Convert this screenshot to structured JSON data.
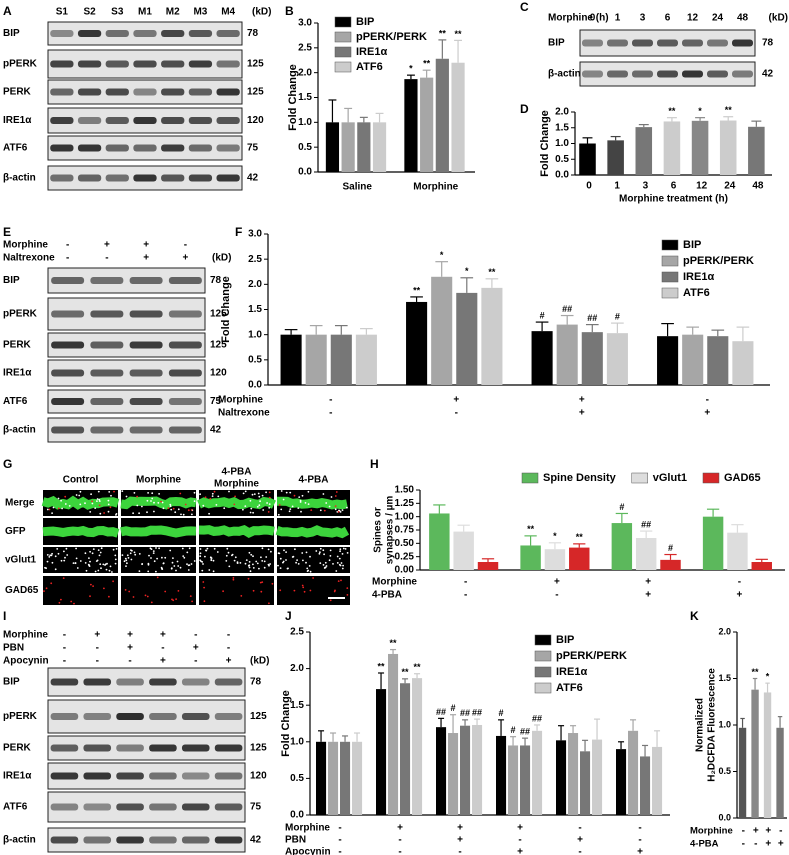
{
  "blots": [
    {
      "panel": "A",
      "lanes": [
        "S1",
        "S2",
        "S3",
        "M1",
        "M2",
        "M3",
        "M4"
      ],
      "unit": "(kD)",
      "rows": [
        {
          "name": "BIP",
          "kd": 78
        },
        {
          "name": "pPERK",
          "kd": 125
        },
        {
          "name": "PERK",
          "kd": 125
        },
        {
          "name": "IRE1α",
          "kd": 120
        },
        {
          "name": "ATF6",
          "kd": 75
        },
        {
          "name": "β-actin",
          "kd": 42
        }
      ]
    },
    {
      "panel": "C",
      "header": "Morphine (h)",
      "lanes": [
        "0",
        "1",
        "3",
        "6",
        "12",
        "24",
        "48"
      ],
      "unit": "(kD)",
      "rows": [
        {
          "name": "BIP",
          "kd": 78
        },
        {
          "name": "β-actin",
          "kd": 42
        }
      ]
    },
    {
      "panel": "E",
      "conditions": [
        {
          "name": "Morphine",
          "signs": [
            "-",
            "+",
            "+",
            "-"
          ]
        },
        {
          "name": "Naltrexone",
          "signs": [
            "-",
            "-",
            "+",
            "+"
          ]
        }
      ],
      "unit": "(kD)",
      "rows": [
        {
          "name": "BIP",
          "kd": 78
        },
        {
          "name": "pPERK",
          "kd": 125
        },
        {
          "name": "PERK",
          "kd": 125
        },
        {
          "name": "IRE1α",
          "kd": 120
        },
        {
          "name": "ATF6",
          "kd": 75
        },
        {
          "name": "β-actin",
          "kd": 42
        }
      ]
    },
    {
      "panel": "I",
      "conditions": [
        {
          "name": "Morphine",
          "signs": [
            "-",
            "+",
            "+",
            "+",
            "-",
            "-"
          ]
        },
        {
          "name": "PBN",
          "signs": [
            "-",
            "-",
            "+",
            "-",
            "+",
            "-"
          ]
        },
        {
          "name": "Apocynin",
          "signs": [
            "-",
            "-",
            "-",
            "+",
            "-",
            "+"
          ]
        }
      ],
      "unit": "(kD)",
      "rows": [
        {
          "name": "BIP",
          "kd": 78
        },
        {
          "name": "pPERK",
          "kd": 125
        },
        {
          "name": "PERK",
          "kd": 125
        },
        {
          "name": "IRE1α",
          "kd": 120
        },
        {
          "name": "ATF6",
          "kd": 75
        },
        {
          "name": "β-actin",
          "kd": 42
        }
      ]
    }
  ],
  "micrographs": {
    "panel": "G",
    "columns": [
      [
        "Control"
      ],
      [
        "Morphine"
      ],
      [
        "4-PBA",
        "Morphine"
      ],
      [
        "4-PBA"
      ]
    ],
    "rows": [
      "Merge",
      "GFP",
      "vGlut1",
      "GAD65"
    ]
  },
  "chart_data": [
    {
      "type": "bar",
      "panel": "B",
      "y_label": "Fold Change",
      "categories": [
        "Saline",
        "Morphine"
      ],
      "ylim": [
        0,
        3
      ],
      "yticks": [
        {
          "value": 0,
          "label": "0.0"
        },
        0.5,
        {
          "value": 1,
          "label": "1.0"
        },
        1.5,
        {
          "value": 2,
          "label": "2.0"
        },
        2.5,
        {
          "value": 3,
          "label": "3.0"
        }
      ],
      "series": [
        {
          "name": "BIP",
          "color": "#000000",
          "values": [
            1.0,
            1.87
          ],
          "errors": [
            0.45,
            0.08
          ],
          "sig": [
            null,
            "*"
          ]
        },
        {
          "name": "pPERK/PERK",
          "color": "#a6a6a6",
          "values": [
            1.0,
            1.9
          ],
          "errors": [
            0.28,
            0.15
          ],
          "sig": [
            null,
            "**"
          ]
        },
        {
          "name": "IRE1α",
          "color": "#777777",
          "values": [
            1.0,
            2.28
          ],
          "errors": [
            0.1,
            0.38
          ],
          "sig": [
            null,
            "**"
          ]
        },
        {
          "name": "ATF6",
          "color": "#cccccc",
          "values": [
            1.0,
            2.2
          ],
          "errors": [
            0.18,
            0.45
          ],
          "sig": [
            null,
            "**"
          ]
        }
      ]
    },
    {
      "type": "bar",
      "panel": "D",
      "y_label": "Fold Change",
      "x_label": "Morphine treatment (h)",
      "categories": [
        "0",
        "1",
        "3",
        "6",
        "12",
        "24",
        "48"
      ],
      "ylim": [
        0,
        2
      ],
      "yticks": [
        {
          "value": 0,
          "label": "0.0"
        },
        0.5,
        {
          "value": 1,
          "label": "1.0"
        },
        1.5,
        {
          "value": 2,
          "label": "2.0"
        }
      ],
      "values": [
        1.0,
        1.1,
        1.52,
        1.7,
        1.72,
        1.73,
        1.53
      ],
      "errors": [
        0.18,
        0.12,
        0.08,
        0.12,
        0.1,
        0.12,
        0.18
      ],
      "sig": [
        null,
        null,
        null,
        "**",
        "*",
        "**",
        null
      ],
      "colors": [
        "#000000",
        "#444444",
        "#777777",
        "#cccccc",
        "#888888",
        "#cccccc",
        "#777777"
      ]
    },
    {
      "type": "bar",
      "panel": "F",
      "y_label": "Fold Change",
      "conditions": [
        {
          "name": "Morphine",
          "signs": [
            "-",
            "+",
            "+",
            "-"
          ]
        },
        {
          "name": "Naltrexone",
          "signs": [
            "-",
            "-",
            "+",
            "+"
          ]
        }
      ],
      "ylim": [
        0,
        3
      ],
      "yticks": [
        {
          "value": 0,
          "label": "0.0"
        },
        0.5,
        {
          "value": 1,
          "label": "1.0"
        },
        1.5,
        {
          "value": 2,
          "label": "2.0"
        },
        2.5,
        {
          "value": 3,
          "label": "3.0"
        }
      ],
      "series": [
        {
          "name": "BIP",
          "color": "#000000",
          "values": [
            1.0,
            1.65,
            1.07,
            0.97
          ],
          "errors": [
            0.1,
            0.1,
            0.18,
            0.25
          ],
          "sig": [
            null,
            "**",
            "#",
            null
          ]
        },
        {
          "name": "pPERK/PERK",
          "color": "#a6a6a6",
          "values": [
            1.0,
            2.15,
            1.2,
            1.0
          ],
          "errors": [
            0.18,
            0.3,
            0.18,
            0.15
          ],
          "sig": [
            null,
            "*",
            "##",
            null
          ]
        },
        {
          "name": "IRE1α",
          "color": "#777777",
          "values": [
            1.0,
            1.83,
            1.05,
            0.97
          ],
          "errors": [
            0.18,
            0.3,
            0.15,
            0.12
          ],
          "sig": [
            null,
            "*",
            "##",
            null
          ]
        },
        {
          "name": "ATF6",
          "color": "#cccccc",
          "values": [
            1.0,
            1.93,
            1.03,
            0.87
          ],
          "errors": [
            0.12,
            0.18,
            0.2,
            0.28
          ],
          "sig": [
            null,
            "**",
            "#",
            null
          ]
        }
      ]
    },
    {
      "type": "bar",
      "panel": "H",
      "y_label": [
        "Spines or",
        "synapses / µm"
      ],
      "conditions": [
        {
          "name": "Morphine",
          "signs": [
            "-",
            "+",
            "+",
            "-"
          ]
        },
        {
          "name": "4-PBA",
          "signs": [
            "-",
            "-",
            "+",
            "+"
          ]
        }
      ],
      "ylim": [
        0,
        1.5
      ],
      "yticks": [
        {
          "value": 0,
          "label": "0.00"
        },
        0.25,
        {
          "value": 0.5,
          "label": "0.50"
        },
        0.75,
        {
          "value": 1,
          "label": "1.00"
        },
        1.25,
        {
          "value": 1.5,
          "label": "1.50"
        }
      ],
      "series": [
        {
          "name": "Spine Density",
          "color": "#5cb85c",
          "values": [
            1.06,
            0.46,
            0.88,
            1.0
          ],
          "errors": [
            0.16,
            0.18,
            0.18,
            0.14
          ],
          "sig": [
            null,
            "**",
            "#",
            null
          ]
        },
        {
          "name": "vGlut1",
          "color": "#dddddd",
          "values": [
            0.72,
            0.39,
            0.6,
            0.7
          ],
          "errors": [
            0.12,
            0.12,
            0.13,
            0.15
          ],
          "sig": [
            null,
            "*",
            "##",
            null
          ]
        },
        {
          "name": "GAD65",
          "color": "#d62728",
          "values": [
            0.15,
            0.42,
            0.19,
            0.15
          ],
          "errors": [
            0.06,
            0.07,
            0.1,
            0.05
          ],
          "sig": [
            null,
            "**",
            "#",
            null
          ]
        }
      ]
    },
    {
      "type": "bar",
      "panel": "J",
      "y_label": "Fold Change",
      "conditions": [
        {
          "name": "Morphine",
          "signs": [
            "-",
            "+",
            "+",
            "+",
            "-",
            "-"
          ]
        },
        {
          "name": "PBN",
          "signs": [
            "-",
            "-",
            "+",
            "-",
            "+",
            "-"
          ]
        },
        {
          "name": "Apocynin",
          "signs": [
            "-",
            "-",
            "-",
            "+",
            "-",
            "+"
          ]
        }
      ],
      "ylim": [
        0,
        2.5
      ],
      "yticks": [
        {
          "value": 0,
          "label": "0.0"
        },
        0.5,
        {
          "value": 1,
          "label": "1.0"
        },
        1.5,
        {
          "value": 2,
          "label": "2.0"
        },
        2.5
      ],
      "series": [
        {
          "name": "BIP",
          "color": "#000000",
          "values": [
            1.0,
            1.72,
            1.2,
            1.08,
            1.02,
            0.9
          ],
          "errors": [
            0.15,
            0.22,
            0.12,
            0.22,
            0.2,
            0.1
          ],
          "sig": [
            null,
            "**",
            "##",
            "#",
            null,
            null
          ]
        },
        {
          "name": "pPERK/PERK",
          "color": "#a6a6a6",
          "values": [
            1.0,
            2.2,
            1.12,
            0.95,
            1.12,
            1.15
          ],
          "errors": [
            0.12,
            0.06,
            0.25,
            0.12,
            0.1,
            0.15
          ],
          "sig": [
            null,
            "**",
            "#",
            "#",
            null,
            null
          ]
        },
        {
          "name": "IRE1α",
          "color": "#777777",
          "values": [
            1.0,
            1.8,
            1.22,
            0.95,
            0.87,
            0.8
          ],
          "errors": [
            0.08,
            0.06,
            0.08,
            0.1,
            0.15,
            0.15
          ],
          "sig": [
            null,
            "**",
            "##",
            "##",
            null,
            null
          ]
        },
        {
          "name": "ATF6",
          "color": "#cccccc",
          "values": [
            1.0,
            1.87,
            1.23,
            1.15,
            1.03,
            0.93
          ],
          "errors": [
            0.12,
            0.06,
            0.08,
            0.08,
            0.28,
            0.22
          ],
          "sig": [
            null,
            "**",
            "##",
            "##",
            null,
            null
          ]
        }
      ]
    },
    {
      "type": "bar",
      "panel": "K",
      "y_label": [
        "Normalized",
        "H₂DCFDA Fluorescence"
      ],
      "conditions": [
        {
          "name": "Morphine",
          "signs": [
            "-",
            "+",
            "+",
            "-"
          ]
        },
        {
          "name": "4-PBA",
          "signs": [
            "-",
            "-",
            "+",
            "+"
          ]
        }
      ],
      "ylim": [
        0,
        2
      ],
      "yticks": [
        {
          "value": 0,
          "label": "0.0"
        },
        0.5,
        {
          "value": 1,
          "label": "1.0"
        },
        1.5,
        {
          "value": 2,
          "label": "2.0"
        }
      ],
      "values": [
        0.97,
        1.38,
        1.35,
        0.97
      ],
      "errors": [
        0.1,
        0.12,
        0.1,
        0.12
      ],
      "sig": [
        null,
        "**",
        "*",
        null
      ],
      "colors": [
        "#555555",
        "#888888",
        "#cccccc",
        "#777777"
      ]
    }
  ]
}
